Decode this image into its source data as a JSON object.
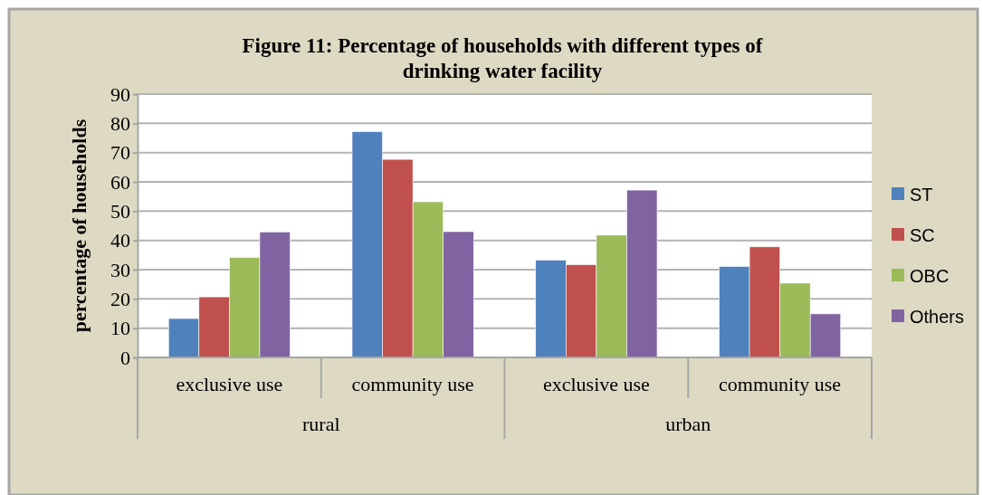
{
  "chart_data": {
    "type": "bar",
    "title": "Figure 11: Percentage of households with different types of drinking water facility",
    "ylabel": "percentage of households",
    "categories": [
      "exclusive use",
      "community use",
      "exclusive use",
      "community use"
    ],
    "annotations": [
      "rural",
      "urban"
    ],
    "series": [
      {
        "name": "ST",
        "color": "#4f81bd",
        "values": [
          13.3,
          77.2,
          33.3,
          31.1
        ]
      },
      {
        "name": "SC",
        "color": "#c0504d",
        "values": [
          20.7,
          67.7,
          31.7,
          37.8
        ]
      },
      {
        "name": "OBC",
        "color": "#9bbb59",
        "values": [
          34.2,
          53.2,
          41.8,
          25.4
        ]
      },
      {
        "name": "Others",
        "color": "#8064a2",
        "values": [
          42.9,
          43.0,
          57.2,
          14.9
        ]
      }
    ],
    "ylim": [
      0,
      90
    ],
    "yticks": [
      0,
      10,
      20,
      30,
      40,
      50,
      60,
      70,
      80,
      90
    ],
    "grid": "y",
    "legend": "right"
  }
}
